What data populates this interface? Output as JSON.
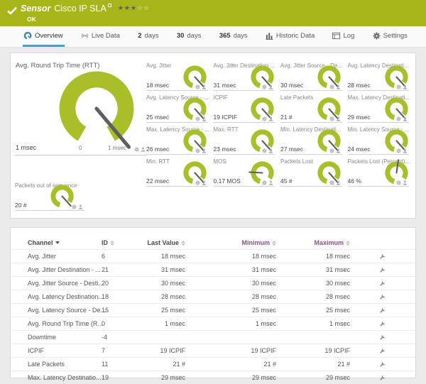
{
  "colors": {
    "banner_green": "#a7b51b",
    "gauge_green": "#a9be29",
    "needle_gray": "#5f5f5f",
    "accent_blue": "#2fa8df",
    "header_purple": "#8a4f8a"
  },
  "banner": {
    "status_icon": "check-icon",
    "kind": "Sensor",
    "title": "Cisco IP SLA",
    "status": "OK",
    "stars_filled": "★★★",
    "stars_empty": "☆☆"
  },
  "tabs": [
    {
      "id": "overview",
      "label": "Overview",
      "icon": "gauge-icon",
      "active": true
    },
    {
      "id": "live-data",
      "label": "Live Data",
      "icon": "broadcast-icon",
      "active": false
    },
    {
      "id": "2-days",
      "num": "2",
      "label": "days",
      "active": false
    },
    {
      "id": "30-days",
      "num": "30",
      "label": "days",
      "active": false
    },
    {
      "id": "365-days",
      "num": "365",
      "label": "days",
      "active": false
    },
    {
      "id": "historic-data",
      "label": "Historic Data",
      "icon": "bar-chart-icon",
      "active": false
    },
    {
      "id": "log",
      "label": "Log",
      "icon": "log-icon",
      "active": false
    },
    {
      "id": "settings",
      "label": "Settings",
      "icon": "gear-icon",
      "active": false
    }
  ],
  "gauges": {
    "big": {
      "title": "Avg. Round Trip Time (RTT)",
      "value": "1 msec",
      "scale_min": "0",
      "scale_max": "1 msec",
      "needle_deg": 50
    },
    "small": [
      {
        "title": "Avg. Jitter",
        "value": "18 msec",
        "needle_deg": 48
      },
      {
        "title": "Avg. Jitter Destination ...",
        "value": "31 msec",
        "needle_deg": 48
      },
      {
        "title": "Avg. Jitter Source - De...",
        "value": "30 msec",
        "needle_deg": 48
      },
      {
        "title": "Avg. Latency Destinati...",
        "value": "28 msec",
        "needle_deg": 48
      },
      {
        "title": "Avg. Latency Source - ...",
        "value": "25 msec",
        "needle_deg": 48
      },
      {
        "title": "ICPIF",
        "value": "19 ICPIF",
        "needle_deg": 48
      },
      {
        "title": "Late Packets",
        "value": "21 #",
        "needle_deg": 48
      },
      {
        "title": "Max. Latency Destinati...",
        "value": "29 msec",
        "needle_deg": 48
      },
      {
        "title": "Max. Latency Source - ...",
        "value": "26 msec",
        "needle_deg": 48
      },
      {
        "title": "Max. RTT",
        "value": "23 msec",
        "needle_deg": 48
      },
      {
        "title": "Min. Latency Destinati...",
        "value": "27 msec",
        "needle_deg": 48
      },
      {
        "title": "Min. Latency Source - ...",
        "value": "24 msec",
        "needle_deg": 48
      },
      {
        "title": "Min. RTT",
        "value": "22 msec",
        "needle_deg": 48
      },
      {
        "title": "MOS",
        "value": "0.17 MOS",
        "needle_deg": 183
      },
      {
        "title": "Packets Lost",
        "value": "45 #",
        "needle_deg": 48
      },
      {
        "title": "Packets Lost (Percent)...",
        "value": "46 %",
        "needle_deg": 278
      }
    ],
    "sequence": {
      "title": "Packets out of sequence",
      "value": "20 #",
      "needle_deg": 48
    }
  },
  "table": {
    "columns": [
      {
        "label": "Channel",
        "align": "left",
        "sorted": true,
        "purple": false
      },
      {
        "label": "ID",
        "align": "left",
        "sorted": false,
        "purple": false
      },
      {
        "label": "Last Value",
        "align": "right",
        "sorted": false,
        "purple": false
      },
      {
        "label": "Minimum",
        "align": "right",
        "sorted": false,
        "purple": true
      },
      {
        "label": "Maximum",
        "align": "right",
        "sorted": false,
        "purple": true
      }
    ],
    "rows": [
      [
        "Avg. Jitter",
        "6",
        "18 msec",
        "18 msec",
        "18 msec"
      ],
      [
        "Avg. Jitter Destination - ...",
        "21",
        "31 msec",
        "31 msec",
        "31 msec"
      ],
      [
        "Avg. Jitter Source - Desti...",
        "20",
        "30 msec",
        "30 msec",
        "30 msec"
      ],
      [
        "Avg. Latency Destination...",
        "18",
        "28 msec",
        "28 msec",
        "28 msec"
      ],
      [
        "Avg. Latency Source - De...",
        "15",
        "25 msec",
        "25 msec",
        "25 msec"
      ],
      [
        "Avg. Round Trip Time (R...",
        "0",
        "1 msec",
        "1 msec",
        "1 msec"
      ],
      [
        "Downtime",
        "-4",
        "",
        "",
        ""
      ],
      [
        "ICPIF",
        "7",
        "19 ICPIF",
        "19 ICPIF",
        "19 ICPIF"
      ],
      [
        "Late Packets",
        "11",
        "21 #",
        "21 #",
        "21 #"
      ],
      [
        "Max. Latency Destinatio...",
        "19",
        "29 msec",
        "29 msec",
        "29 msec"
      ]
    ]
  }
}
